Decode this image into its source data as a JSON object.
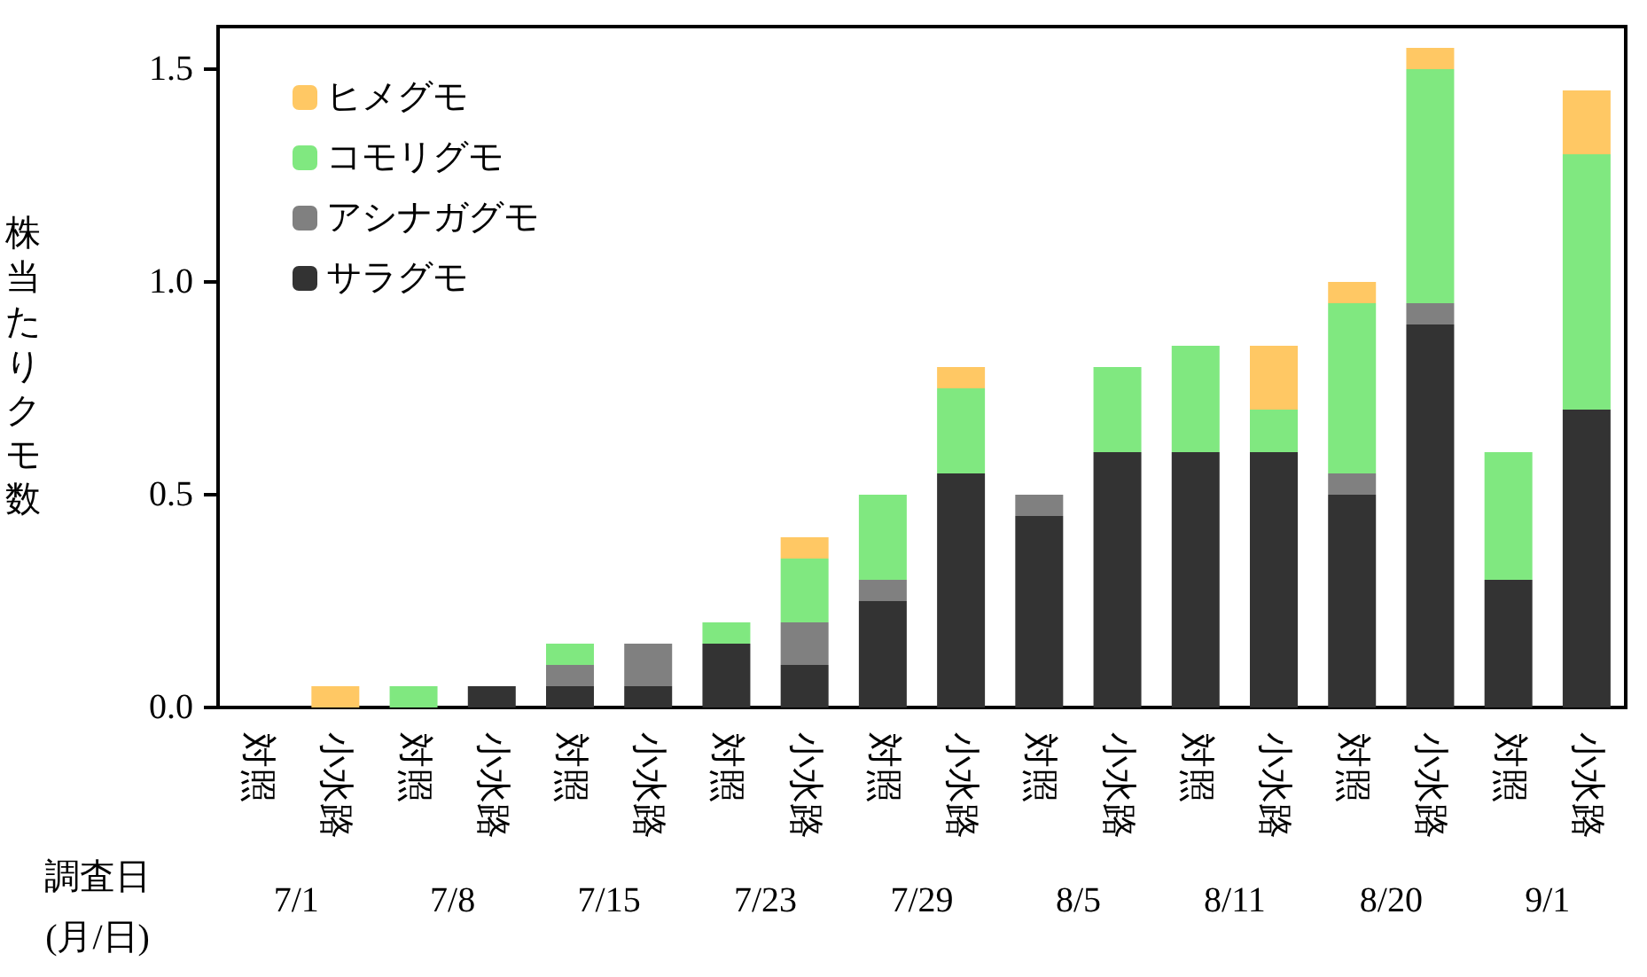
{
  "chart_data": {
    "type": "bar",
    "stacked": true,
    "categories": [
      "対照",
      "小水路",
      "対照",
      "小水路",
      "対照",
      "小水路",
      "対照",
      "小水路",
      "対照",
      "小水路",
      "対照",
      "小水路",
      "対照",
      "小水路",
      "対照",
      "小水路",
      "対照",
      "小水路"
    ],
    "series": [
      {
        "name": "サラグモ",
        "color": "#333333",
        "values": [
          0,
          0,
          0,
          0.05,
          0.05,
          0.05,
          0.15,
          0.1,
          0.25,
          0.55,
          0.45,
          0.6,
          0.6,
          0.6,
          0.5,
          0.9,
          0.3,
          0.7
        ]
      },
      {
        "name": "アシナガグモ",
        "color": "#808080",
        "values": [
          0,
          0,
          0,
          0,
          0.05,
          0.1,
          0,
          0.1,
          0.05,
          0,
          0.05,
          0,
          0,
          0,
          0.05,
          0.05,
          0,
          0
        ]
      },
      {
        "name": "コモリグモ",
        "color": "#80e880",
        "values": [
          0,
          0,
          0.05,
          0,
          0.05,
          0,
          0.05,
          0.15,
          0.2,
          0.2,
          0,
          0.2,
          0.25,
          0.1,
          0.4,
          0.55,
          0.3,
          0.6
        ]
      },
      {
        "name": "ヒメグモ",
        "color": "#ffc864",
        "values": [
          0,
          0.05,
          0,
          0,
          0,
          0,
          0,
          0.05,
          0,
          0.05,
          0,
          0,
          0,
          0.15,
          0.05,
          0.05,
          0,
          0.15
        ]
      }
    ],
    "ylabel": "株当たりクモ数",
    "xlabel": "調査日\n(月/日)",
    "annotations": [
      "7/1",
      "7/8",
      "7/15",
      "7/23",
      "7/29",
      "8/5",
      "8/11",
      "8/20",
      "9/1"
    ],
    "ylim": [
      0,
      1.6
    ],
    "yticks": [
      {
        "value": 0,
        "label": "0.0"
      },
      {
        "value": 0.5,
        "label": "0.5"
      },
      {
        "value": 1,
        "label": "1.0"
      },
      {
        "value": 1.5,
        "label": "1.5"
      }
    ],
    "grid": false,
    "legend": "top left"
  }
}
